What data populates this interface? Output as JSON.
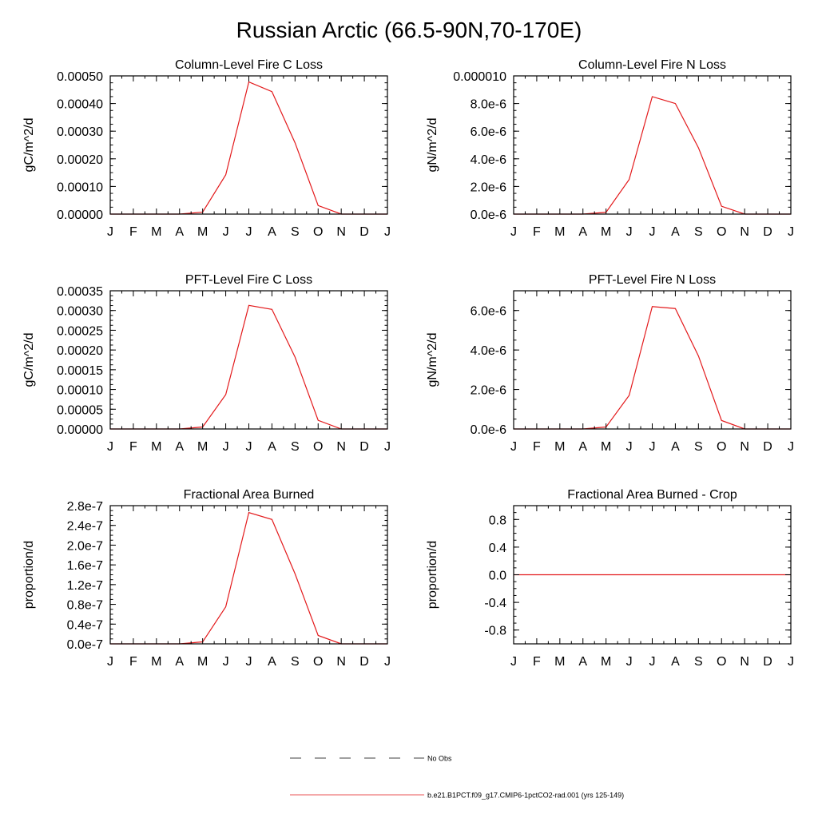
{
  "title": "Russian Arctic (66.5-90N,70-170E)",
  "colors": {
    "model_line": "#e31a1c",
    "axis": "#000000",
    "obs_line": "#000000"
  },
  "legend": {
    "entries": [
      {
        "label": "No Obs",
        "style": "dashed",
        "color": "#000000"
      },
      {
        "label": "b.e21.B1PCT.f09_g17.CMIP6-1pctCO2-rad.001 (yrs 125-149)",
        "style": "solid",
        "color": "#e31a1c"
      }
    ]
  },
  "chart_data": [
    {
      "type": "line",
      "title": "Column-Level Fire C Loss",
      "ylabel": "gC/m^2/d",
      "xlabel": "",
      "categories": [
        "J",
        "F",
        "M",
        "A",
        "M",
        "J",
        "J",
        "A",
        "S",
        "O",
        "N",
        "D",
        "J"
      ],
      "ylim": [
        0,
        0.0005
      ],
      "yticks": [
        0,
        0.0001,
        0.0002,
        0.0003,
        0.0004,
        0.0005
      ],
      "ytick_labels": [
        "0.00000",
        "0.00010",
        "0.00020",
        "0.00030",
        "0.00040",
        "0.00050"
      ],
      "series": [
        {
          "values": [
            0,
            0,
            0,
            0,
            7e-06,
            0.000142,
            0.000478,
            0.000443,
            0.000258,
            3.1e-05,
            0,
            0,
            0
          ]
        }
      ]
    },
    {
      "type": "line",
      "title": "Column-Level Fire N Loss",
      "ylabel": "gN/m^2/d",
      "xlabel": "",
      "categories": [
        "J",
        "F",
        "M",
        "A",
        "M",
        "J",
        "J",
        "A",
        "S",
        "O",
        "N",
        "D",
        "J"
      ],
      "ylim": [
        0,
        1e-05
      ],
      "yticks": [
        0,
        2e-06,
        4e-06,
        6e-06,
        8e-06,
        1e-05
      ],
      "ytick_labels": [
        "0.0e-6",
        "2.0e-6",
        "4.0e-6",
        "6.0e-6",
        "8.0e-6",
        "0.000010"
      ],
      "series": [
        {
          "values": [
            0,
            0,
            0,
            0,
            1.3e-07,
            2.5e-06,
            8.5e-06,
            8e-06,
            4.8e-06,
            5.7e-07,
            0,
            0,
            0
          ]
        }
      ]
    },
    {
      "type": "line",
      "title": "PFT-Level Fire C Loss",
      "ylabel": "gC/m^2/d",
      "xlabel": "",
      "categories": [
        "J",
        "F",
        "M",
        "A",
        "M",
        "J",
        "J",
        "A",
        "S",
        "O",
        "N",
        "D",
        "J"
      ],
      "ylim": [
        0,
        0.00035
      ],
      "yticks": [
        0,
        5e-05,
        0.0001,
        0.00015,
        0.0002,
        0.00025,
        0.0003,
        0.00035
      ],
      "ytick_labels": [
        "0.00000",
        "0.00005",
        "0.00010",
        "0.00015",
        "0.00020",
        "0.00025",
        "0.00030",
        "0.00035"
      ],
      "series": [
        {
          "values": [
            0,
            0,
            0,
            0,
            5e-06,
            8.7e-05,
            0.000313,
            0.000303,
            0.000182,
            2.2e-05,
            0,
            0,
            0
          ]
        }
      ]
    },
    {
      "type": "line",
      "title": "PFT-Level Fire N Loss",
      "ylabel": "gN/m^2/d",
      "xlabel": "",
      "categories": [
        "J",
        "F",
        "M",
        "A",
        "M",
        "J",
        "J",
        "A",
        "S",
        "O",
        "N",
        "D",
        "J"
      ],
      "ylim": [
        0,
        7e-06
      ],
      "yticks": [
        0,
        2e-06,
        4e-06,
        6e-06
      ],
      "ytick_labels": [
        "0.0e-6",
        "2.0e-6",
        "4.0e-6",
        "6.0e-6"
      ],
      "series": [
        {
          "values": [
            0,
            0,
            0,
            0,
            1e-07,
            1.7e-06,
            6.2e-06,
            6.1e-06,
            3.7e-06,
            4.3e-07,
            0,
            0,
            0
          ]
        }
      ]
    },
    {
      "type": "line",
      "title": "Fractional Area Burned",
      "ylabel": "proportion/d",
      "xlabel": "",
      "categories": [
        "J",
        "F",
        "M",
        "A",
        "M",
        "J",
        "J",
        "A",
        "S",
        "O",
        "N",
        "D",
        "J"
      ],
      "ylim": [
        0,
        2.8e-07
      ],
      "yticks": [
        0,
        4e-08,
        8e-08,
        1.2e-07,
        1.6e-07,
        2e-07,
        2.4e-07,
        2.8e-07
      ],
      "ytick_labels": [
        "0.0e-7",
        "0.4e-7",
        "0.8e-7",
        "1.2e-7",
        "1.6e-7",
        "2.0e-7",
        "2.4e-7",
        "2.8e-7"
      ],
      "series": [
        {
          "values": [
            0,
            0,
            0,
            0,
            4e-09,
            7.5e-08,
            2.66e-07,
            2.52e-07,
            1.42e-07,
            1.7e-08,
            0,
            0,
            0
          ]
        }
      ]
    },
    {
      "type": "line",
      "title": "Fractional Area Burned - Crop",
      "ylabel": "proportion/d",
      "xlabel": "",
      "categories": [
        "J",
        "F",
        "M",
        "A",
        "M",
        "J",
        "J",
        "A",
        "S",
        "O",
        "N",
        "D",
        "J"
      ],
      "ylim": [
        -1,
        1
      ],
      "yticks": [
        -0.8,
        -0.4,
        0,
        0.4,
        0.8
      ],
      "ytick_labels": [
        "-0.8",
        "-0.4",
        "0.0",
        "0.4",
        "0.8"
      ],
      "series": [
        {
          "values": [
            0,
            0,
            0,
            0,
            0,
            0,
            0,
            0,
            0,
            0,
            0,
            0,
            0
          ]
        }
      ]
    }
  ]
}
